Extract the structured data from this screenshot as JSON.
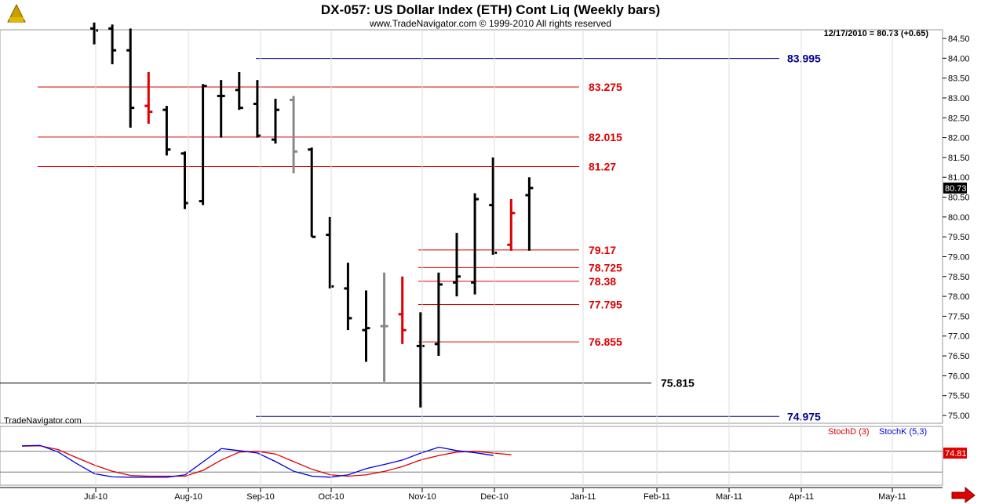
{
  "header": {
    "title": "DX-057:  US Dollar Index (ETH) Cont Liq  (Weekly bars)",
    "copyright": "www.TradeNavigator.com © 1999-2010 All rights reserved",
    "last_quote": "12/17/2010 = 80.73 (+0.65)",
    "watermark": "TradeNavigator.com",
    "logo_icon": "trade-navigator-logo-icon"
  },
  "colors": {
    "up_bar": "#000000",
    "down_bar": "#dd0000",
    "neutral_bar": "#888888",
    "resistance": "#dd0000",
    "support_blue": "#00008b",
    "support_black": "#000000",
    "stochD": "#dd0000",
    "stochK": "#0000dd",
    "nav_arrow": "#dd0000"
  },
  "chart_data": [
    {
      "type": "ohlc",
      "title": "DX-057:  US Dollar Index (ETH) Cont Liq  (Weekly bars)",
      "ylim": [
        74.85,
        84.65
      ],
      "y_ticks": [
        "84.50",
        "84.00",
        "83.50",
        "83.00",
        "82.50",
        "82.00",
        "81.50",
        "81.00",
        "80.50",
        "80.00",
        "79.50",
        "79.00",
        "78.50",
        "78.00",
        "77.50",
        "77.00",
        "76.50",
        "76.00",
        "75.50",
        "75.00"
      ],
      "x_labels": [
        "Jul-10",
        "Aug-10",
        "Sep-10",
        "Oct-10",
        "Nov-10",
        "Dec-10",
        "Jan-11",
        "Feb-11",
        "Mar-11",
        "Apr-11",
        "May-11"
      ],
      "last_price_tag": "80.73",
      "bars": [
        {
          "o": 84.75,
          "h": 84.9,
          "l": 84.35,
          "c": 84.7,
          "color": "black"
        },
        {
          "o": 84.75,
          "h": 84.85,
          "l": 83.85,
          "c": 84.2,
          "color": "black"
        },
        {
          "o": 84.2,
          "h": 84.75,
          "l": 82.25,
          "c": 82.75,
          "color": "black"
        },
        {
          "o": 82.8,
          "h": 83.65,
          "l": 82.35,
          "c": 82.65,
          "color": "red"
        },
        {
          "o": 82.7,
          "h": 82.8,
          "l": 81.55,
          "c": 81.7,
          "color": "black"
        },
        {
          "o": 81.6,
          "h": 81.65,
          "l": 80.2,
          "c": 80.35,
          "color": "black"
        },
        {
          "o": 80.4,
          "h": 83.35,
          "l": 80.3,
          "c": 83.3,
          "color": "black"
        },
        {
          "o": 83.05,
          "h": 83.45,
          "l": 82.0,
          "c": 83.05,
          "color": "black"
        },
        {
          "o": 83.2,
          "h": 83.65,
          "l": 82.7,
          "c": 82.75,
          "color": "black"
        },
        {
          "o": 82.85,
          "h": 83.45,
          "l": 82.0,
          "c": 82.05,
          "color": "black"
        },
        {
          "o": 81.95,
          "h": 82.98,
          "l": 81.85,
          "c": 82.7,
          "color": "black"
        },
        {
          "o": 82.95,
          "h": 83.05,
          "l": 81.1,
          "c": 81.65,
          "color": "gray"
        },
        {
          "o": 81.7,
          "h": 81.75,
          "l": 79.5,
          "c": 79.5,
          "color": "black"
        },
        {
          "o": 79.55,
          "h": 80.0,
          "l": 78.2,
          "c": 78.25,
          "color": "black"
        },
        {
          "o": 78.2,
          "h": 78.85,
          "l": 77.15,
          "c": 77.45,
          "color": "black"
        },
        {
          "o": 77.15,
          "h": 78.15,
          "l": 76.35,
          "c": 77.2,
          "color": "black"
        },
        {
          "o": 77.25,
          "h": 78.6,
          "l": 75.85,
          "c": 77.25,
          "color": "gray"
        },
        {
          "o": 77.55,
          "h": 78.5,
          "l": 76.8,
          "c": 77.15,
          "color": "red"
        },
        {
          "o": 76.75,
          "h": 77.6,
          "l": 75.2,
          "c": 76.75,
          "color": "black"
        },
        {
          "o": 76.8,
          "h": 78.6,
          "l": 76.5,
          "c": 78.3,
          "color": "black"
        },
        {
          "o": 78.35,
          "h": 79.6,
          "l": 78.0,
          "c": 78.5,
          "color": "black"
        },
        {
          "o": 78.35,
          "h": 80.6,
          "l": 78.05,
          "c": 80.45,
          "color": "black"
        },
        {
          "o": 80.3,
          "h": 81.5,
          "l": 79.05,
          "c": 79.1,
          "color": "black"
        },
        {
          "o": 79.3,
          "h": 80.45,
          "l": 79.15,
          "c": 80.1,
          "color": "red"
        },
        {
          "o": 80.55,
          "h": 81.0,
          "l": 79.15,
          "c": 80.73,
          "color": "black"
        }
      ],
      "levels": [
        {
          "value": 83.995,
          "label": "83.995",
          "color": "blue"
        },
        {
          "value": 83.275,
          "label": "83.275",
          "color": "red"
        },
        {
          "value": 82.015,
          "label": "82.015",
          "color": "red"
        },
        {
          "value": 81.27,
          "label": "81.27",
          "color": "red"
        },
        {
          "value": 79.17,
          "label": "79.17",
          "color": "red"
        },
        {
          "value": 78.725,
          "label": "78.725",
          "color": "red"
        },
        {
          "value": 78.38,
          "label": "78.38",
          "color": "red"
        },
        {
          "value": 77.795,
          "label": "77.795",
          "color": "red"
        },
        {
          "value": 76.855,
          "label": "76.855",
          "color": "red"
        },
        {
          "value": 75.815,
          "label": "75.815",
          "color": "black"
        },
        {
          "value": 74.975,
          "label": "74.975",
          "color": "blue"
        }
      ]
    },
    {
      "type": "line",
      "ylim": [
        0,
        100
      ],
      "legend": [
        "StochD (3)",
        "StochK (5,3)"
      ],
      "last_value_tag": "74.81",
      "series": [
        {
          "name": "StochD (3)",
          "color": "red",
          "values": [
            95,
            96,
            85,
            62,
            40,
            22,
            10,
            8,
            8,
            8,
            25,
            55,
            78,
            80,
            72,
            50,
            28,
            12,
            8,
            12,
            22,
            36,
            55,
            68,
            78,
            80,
            75,
            70
          ]
        },
        {
          "name": "StochK (5,3)",
          "color": "blue",
          "values": [
            96,
            97,
            78,
            45,
            15,
            6,
            5,
            5,
            5,
            12,
            50,
            88,
            82,
            75,
            50,
            22,
            8,
            5,
            12,
            30,
            42,
            55,
            75,
            92,
            82,
            76,
            68
          ]
        }
      ]
    }
  ]
}
